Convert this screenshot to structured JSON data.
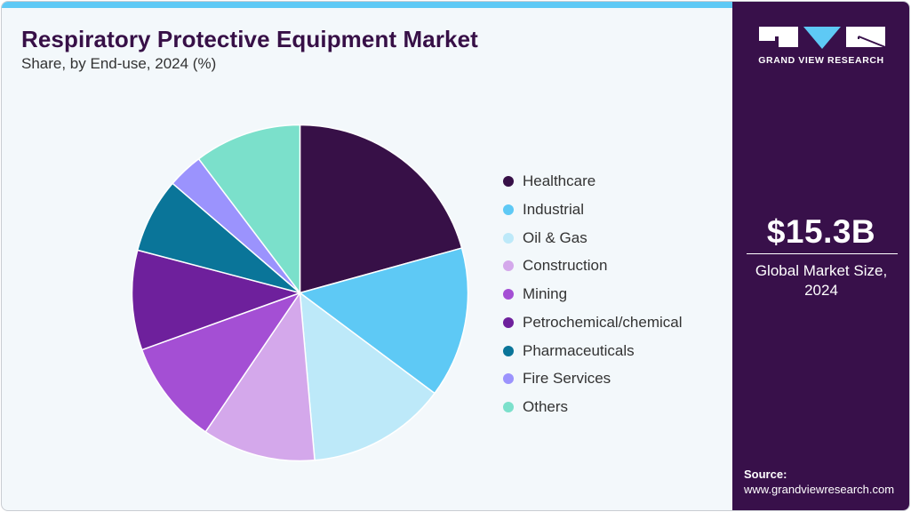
{
  "header": {
    "title": "Respiratory Protective Equipment Market",
    "subtitle": "Share, by End-use, 2024 (%)"
  },
  "side_panel": {
    "brand": "GRAND VIEW RESEARCH",
    "market_value": "$15.3B",
    "market_label_line1": "Global Market Size,",
    "market_label_line2": "2024",
    "source_title": "Source:",
    "source_url": "www.grandviewresearch.com"
  },
  "colors": {
    "accent_stripe": "#5ec9f5",
    "panel": "#38104a",
    "title": "#371047"
  },
  "chart_data": {
    "type": "pie",
    "title": "Respiratory Protective Equipment Market",
    "subtitle": "Share, by End-use, 2024 (%)",
    "start_angle_deg": 0,
    "direction": "clockwise",
    "legend_position": "right",
    "categories": [
      "Healthcare",
      "Industrial",
      "Oil & Gas",
      "Construction",
      "Mining",
      "Petrochemical/chemical",
      "Pharmaceuticals",
      "Fire Services",
      "Others"
    ],
    "values": [
      20.7,
      14.5,
      13.4,
      10.9,
      10.0,
      9.6,
      7.2,
      3.4,
      10.3
    ],
    "colors": [
      "#371047",
      "#5ec9f5",
      "#bde9f9",
      "#d4a8eb",
      "#a44fd4",
      "#6e209c",
      "#0a7599",
      "#9b93fd",
      "#7be0cb"
    ]
  }
}
